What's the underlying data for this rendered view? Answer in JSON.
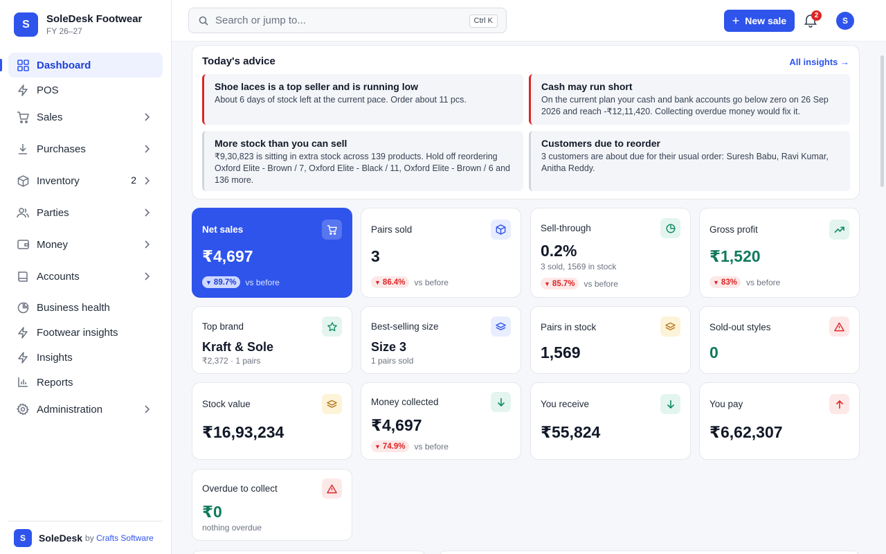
{
  "brand": {
    "logo_letter": "S",
    "name": "SoleDesk Footwear",
    "fiscal_year": "FY 26–27"
  },
  "nav": [
    {
      "label": "Dashboard",
      "icon": "grid-icon",
      "active": true
    },
    {
      "label": "POS",
      "icon": "bolt-icon"
    },
    {
      "label": "Sales",
      "icon": "cart-icon",
      "chevron": true
    },
    {
      "label": "Purchases",
      "icon": "download-icon",
      "chevron": true
    },
    {
      "label": "Inventory",
      "icon": "box-icon",
      "chevron": true,
      "count": "2"
    },
    {
      "label": "Parties",
      "icon": "users-icon",
      "chevron": true
    },
    {
      "label": "Money",
      "icon": "wallet-icon",
      "chevron": true
    },
    {
      "label": "Accounts",
      "icon": "book-icon",
      "chevron": true
    },
    {
      "label": "Business health",
      "icon": "pie-icon"
    },
    {
      "label": "Footwear insights",
      "icon": "bolt-icon"
    },
    {
      "label": "Insights",
      "icon": "bolt-icon"
    },
    {
      "label": "Reports",
      "icon": "bar-chart-icon"
    },
    {
      "label": "Administration",
      "icon": "gear-icon",
      "chevron": true
    }
  ],
  "footer": {
    "logo_letter": "S",
    "name": "SoleDesk",
    "by": "by",
    "company": "Crafts Software"
  },
  "topbar": {
    "search_placeholder": "Search or jump to...",
    "shortcut": "Ctrl K",
    "new_sale_label": "New sale",
    "notification_count": "2",
    "avatar_letter": "S"
  },
  "advice": {
    "title": "Today's advice",
    "link": "All insights →",
    "cards": [
      {
        "title": "Shoe laces is a top seller and is running low",
        "body": "About 6 days of stock left at the current pace. Order about 11 pcs.",
        "tone": "red"
      },
      {
        "title": "Cash may run short",
        "body": "On the current plan your cash and bank accounts go below zero on 26 Sep 2026 and reach -₹12,11,420. Collecting overdue money would fix it.",
        "tone": "red"
      },
      {
        "title": "More stock than you can sell",
        "body": "₹9,30,823 is sitting in extra stock across 139 products. Hold off reordering Oxford Elite - Brown / 7, Oxford Elite - Black / 11, Oxford Elite - Brown / 6 and 136 more.",
        "tone": "gray"
      },
      {
        "title": "Customers due to reorder",
        "body": "3 customers are about due for their usual order: Suresh Babu, Ravi Kumar, Anitha Reddy.",
        "tone": "gray"
      }
    ]
  },
  "kpis": {
    "net_sales": {
      "title": "Net sales",
      "value": "₹4,697",
      "delta": "89.7%",
      "vs": "vs before",
      "icon": "cart-icon"
    },
    "pairs_sold": {
      "title": "Pairs sold",
      "value": "3",
      "delta": "86.4%",
      "vs": "vs before",
      "icon": "box-icon"
    },
    "sell_through": {
      "title": "Sell-through",
      "value": "0.2%",
      "sub": "3 sold, 1569 in stock",
      "delta": "85.7%",
      "vs": "vs before",
      "icon": "pie-icon"
    },
    "gross_profit": {
      "title": "Gross profit",
      "value": "₹1,520",
      "delta": "83%",
      "vs": "vs before",
      "icon": "trend-up-icon"
    },
    "top_brand": {
      "title": "Top brand",
      "value": "Kraft & Sole",
      "sub": "₹2,372 · 1 pairs",
      "icon": "star-icon"
    },
    "best_size": {
      "title": "Best-selling size",
      "value": "Size 3",
      "sub": "1 pairs sold",
      "icon": "layers-icon"
    },
    "pairs_stock": {
      "title": "Pairs in stock",
      "value": "1,569",
      "icon": "layers-icon"
    },
    "sold_out": {
      "title": "Sold-out styles",
      "value": "0",
      "icon": "warning-icon"
    },
    "stock_value": {
      "title": "Stock value",
      "value": "₹16,93,234",
      "icon": "layers-icon"
    },
    "money_collected": {
      "title": "Money collected",
      "value": "₹4,697",
      "delta": "74.9%",
      "vs": "vs before",
      "icon": "arrow-down-icon"
    },
    "you_receive": {
      "title": "You receive",
      "value": "₹55,824",
      "icon": "arrow-down-icon"
    },
    "you_pay": {
      "title": "You pay",
      "value": "₹6,62,307",
      "icon": "arrow-up-icon"
    },
    "overdue": {
      "title": "Overdue to collect",
      "value": "₹0",
      "sub": "nothing overdue",
      "icon": "warning-icon"
    }
  },
  "colors": {
    "accent": "#2f54eb",
    "danger": "#dc2626",
    "success": "#0f7a5c"
  }
}
